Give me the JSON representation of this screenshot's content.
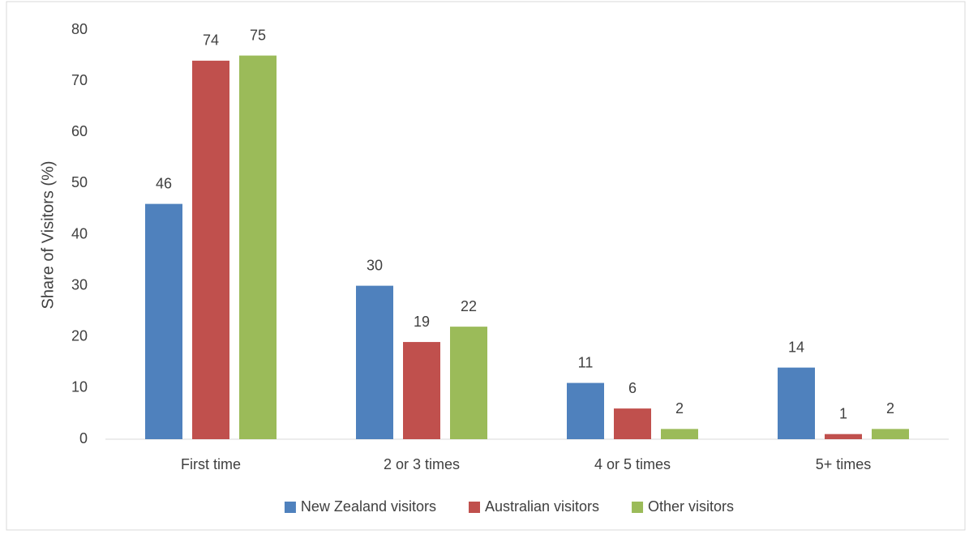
{
  "chart_data": {
    "type": "bar",
    "y_axis_label": "Share of Visitors (%)",
    "categories": [
      "First time",
      "2 or 3 times",
      "4 or 5 times",
      "5+ times"
    ],
    "series": [
      {
        "name": "New Zealand visitors",
        "color": "#4f81bd",
        "values": [
          46,
          30,
          11,
          14
        ]
      },
      {
        "name": "Australian visitors",
        "color": "#c0504d",
        "values": [
          74,
          19,
          6,
          1
        ]
      },
      {
        "name": "Other visitors",
        "color": "#9bbb59",
        "values": [
          75,
          22,
          2,
          2
        ]
      }
    ],
    "ylim": [
      0,
      80
    ],
    "yticks": [
      0,
      10,
      20,
      30,
      40,
      50,
      60,
      70,
      80
    ],
    "grid": false,
    "legend": "bottom",
    "data_labels": true
  }
}
